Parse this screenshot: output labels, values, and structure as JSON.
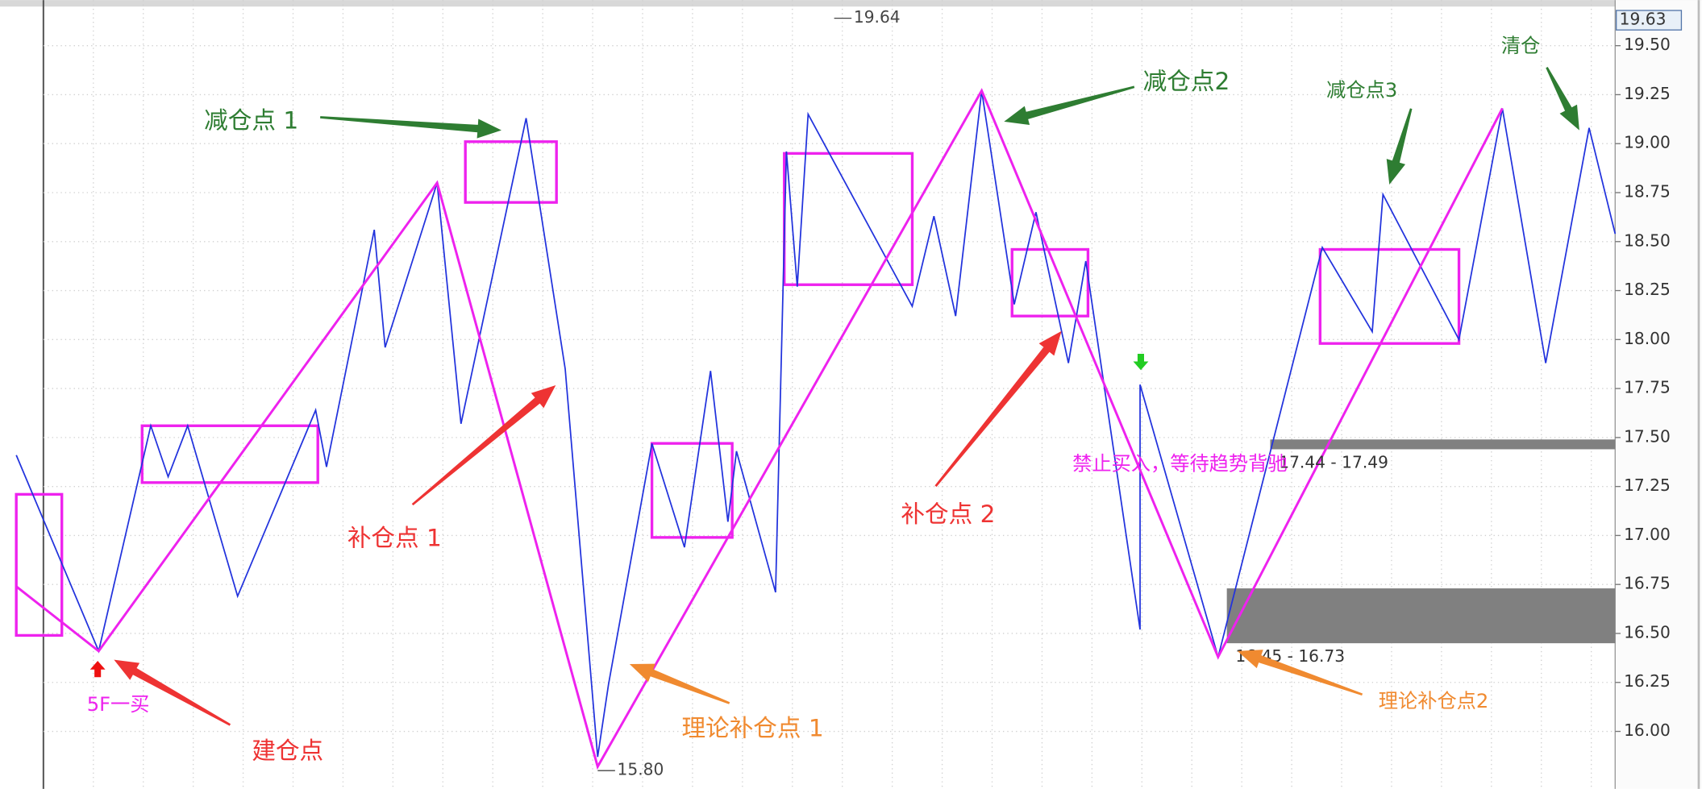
{
  "chart_data": {
    "type": "zigzag",
    "xlim": [
      0,
      737
    ],
    "ylim": [
      15.65,
      19.73
    ],
    "yticks": [
      {
        "value": 16,
        "label": "16.00"
      },
      16.25,
      {
        "value": 16.5,
        "label": "16.50"
      },
      16.75,
      {
        "value": 17,
        "label": "17.00"
      },
      17.25,
      {
        "value": 17.5,
        "label": "17.50"
      },
      17.75,
      {
        "value": 18,
        "label": "18.00"
      },
      18.25,
      {
        "value": 18.5,
        "label": "18.50"
      },
      18.75,
      {
        "value": 19,
        "label": "19.00"
      },
      19.25,
      {
        "value": 19.5,
        "label": "19.50"
      }
    ],
    "grid": true,
    "last_price": 19.63,
    "high": {
      "x": 377,
      "value": 19.64
    },
    "low": {
      "x": 268,
      "value": {
        "value": 15.8,
        "label": "15.80"
      }
    },
    "series": [
      {
        "color": "#2233dd",
        "x": [
          0,
          38,
          62,
          70,
          79,
          102,
          138,
          143,
          165,
          170,
          194,
          205,
          235,
          253,
          268,
          273,
          293,
          308,
          320,
          328,
          332,
          350,
          355,
          360,
          365,
          413,
          423,
          433,
          445,
          460,
          470,
          485,
          493,
          518,
          518,
          554,
          602,
          625,
          630,
          665,
          685,
          705,
          725,
          737
        ],
        "values": [
          17.41,
          16.41,
          17.56,
          17.3,
          17.56,
          16.69,
          17.64,
          17.35,
          18.56,
          17.96,
          18.8,
          17.57,
          19.13,
          17.85,
          15.87,
          16.24,
          17.47,
          16.94,
          17.84,
          17.07,
          17.43,
          16.71,
          18.96,
          18.27,
          19.15,
          18.17,
          18.63,
          18.12,
          19.27,
          18.18,
          18.65,
          17.88,
          18.4,
          16.52,
          17.77,
          16.38,
          18.47,
          18.04,
          18.74,
          18.0,
          19.18,
          17.88,
          19.08,
          18.54
        ]
      },
      {
        "color": "#ee22ee",
        "x": [
          0,
          38,
          194,
          268,
          445,
          554,
          685
        ],
        "values": [
          16.74,
          16.41,
          18.8,
          15.82,
          19.27,
          16.38,
          19.18
        ]
      }
    ],
    "boxes": {
      "color": "#ee22ee",
      "items": [
        {
          "x": [
            0,
            21
          ],
          "range": [
            16.49,
            17.21
          ]
        },
        {
          "x": [
            58,
            139
          ],
          "range": [
            17.27,
            17.56
          ]
        },
        {
          "x": [
            207,
            249
          ],
          "range": [
            18.7,
            19.01
          ]
        },
        {
          "x": [
            293,
            330
          ],
          "range": [
            16.99,
            17.47
          ]
        },
        {
          "x": [
            354,
            413
          ],
          "range": [
            18.28,
            18.95
          ]
        },
        {
          "x": [
            459,
            494
          ],
          "range": [
            18.12,
            18.46
          ]
        },
        {
          "x": [
            601,
            665
          ],
          "range": [
            17.98,
            18.46
          ]
        }
      ]
    },
    "zones": {
      "color": "#808080",
      "items": [
        {
          "x": [
            578,
            737
          ],
          "range": [
            17.44,
            17.49
          ],
          "label": "17.44 - 17.49"
        },
        {
          "x": [
            558,
            737
          ],
          "range": [
            16.45,
            16.73
          ],
          "label": "16.45 - 16.73"
        }
      ]
    },
    "annotations": [
      {
        "text": "减仓点 1",
        "color": "#2e7d32"
      },
      {
        "text": "减仓点2",
        "color": "#2e7d32"
      },
      {
        "text": "减仓点3",
        "color": "#2e7d32"
      },
      {
        "text": "清仓",
        "color": "#2e7d32"
      },
      {
        "text": "补仓点 1",
        "color": "#ee3333"
      },
      {
        "text": "补仓点 2",
        "color": "#ee3333"
      },
      {
        "text": "建仓点",
        "color": "#ee3333"
      },
      {
        "text": "理论补仓点 1",
        "color": "#f08a30"
      },
      {
        "text": "理论补仓点2",
        "color": "#f08a30"
      },
      {
        "text": "5F一买",
        "color": "#ee22ee"
      },
      {
        "text": "禁止买入，等待趋势背驰",
        "color": "#ee22ee"
      }
    ]
  }
}
